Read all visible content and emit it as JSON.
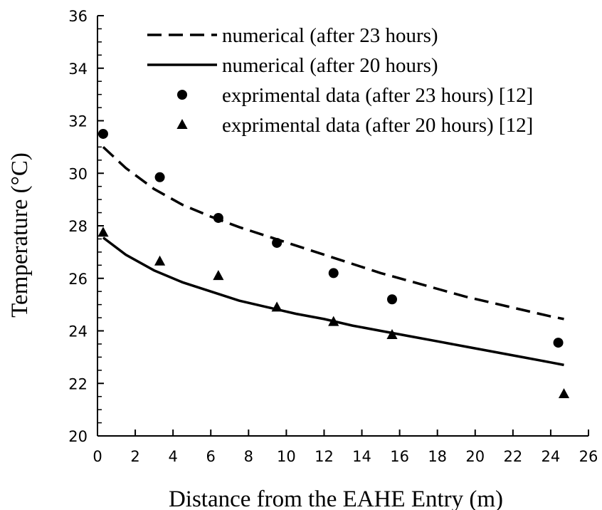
{
  "chart_data": {
    "type": "line",
    "title": "",
    "xlabel": "Distance from the EAHE Entry (m)",
    "ylabel": "Temperature (°C)",
    "xlim": [
      0,
      26
    ],
    "ylim": [
      20,
      36
    ],
    "x_ticks": [
      "0",
      "2",
      "4",
      "6",
      "8",
      "10",
      "12",
      "14",
      "16",
      "18",
      "20",
      "22",
      "24",
      "26"
    ],
    "y_ticks": [
      "20",
      "22",
      "24",
      "26",
      "28",
      "30",
      "32",
      "34",
      "36"
    ],
    "grid": false,
    "legend_position": "top-right",
    "series": [
      {
        "name": "numerical (after 23 hours)",
        "style": "dashed-line",
        "color": "#000000",
        "x": [
          0.3,
          1.5,
          3.0,
          4.5,
          6.0,
          7.5,
          9.0,
          10.5,
          12.0,
          13.5,
          15.0,
          16.5,
          18.0,
          19.5,
          21.0,
          22.5,
          24.0,
          24.7
        ],
        "y": [
          31.0,
          30.2,
          29.4,
          28.8,
          28.35,
          27.95,
          27.6,
          27.25,
          26.9,
          26.55,
          26.2,
          25.9,
          25.6,
          25.3,
          25.05,
          24.8,
          24.55,
          24.45
        ]
      },
      {
        "name": "numerical (after 20 hours)",
        "style": "solid-line",
        "color": "#000000",
        "x": [
          0.3,
          1.5,
          3.0,
          4.5,
          6.0,
          7.5,
          9.0,
          10.5,
          12.0,
          13.5,
          15.0,
          16.5,
          18.0,
          19.5,
          21.0,
          22.5,
          24.0,
          24.7
        ],
        "y": [
          27.55,
          26.9,
          26.3,
          25.85,
          25.5,
          25.15,
          24.9,
          24.65,
          24.45,
          24.2,
          24.0,
          23.8,
          23.6,
          23.4,
          23.2,
          23.0,
          22.8,
          22.7
        ]
      },
      {
        "name": "exprimental data (after 23 hours) [12]",
        "style": "circle-marker",
        "color": "#000000",
        "x": [
          0.3,
          3.3,
          6.4,
          9.5,
          12.5,
          15.6,
          24.4
        ],
        "y": [
          31.5,
          29.85,
          28.3,
          27.35,
          26.2,
          25.2,
          23.55
        ]
      },
      {
        "name": "exprimental data (after 20 hours) [12]",
        "style": "triangle-marker",
        "color": "#000000",
        "x": [
          0.3,
          3.3,
          6.4,
          9.5,
          12.5,
          15.6,
          24.7
        ],
        "y": [
          27.75,
          26.65,
          26.1,
          24.9,
          24.35,
          23.85,
          21.6
        ]
      }
    ]
  }
}
